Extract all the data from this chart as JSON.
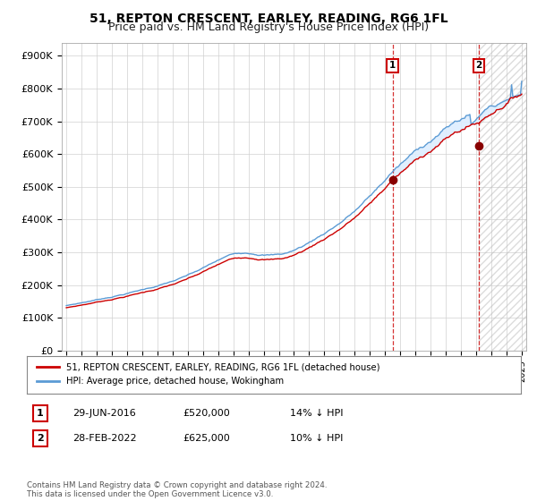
{
  "title": "51, REPTON CRESCENT, EARLEY, READING, RG6 1FL",
  "subtitle": "Price paid vs. HM Land Registry's House Price Index (HPI)",
  "ytick_vals": [
    0,
    100000,
    200000,
    300000,
    400000,
    500000,
    600000,
    700000,
    800000,
    900000
  ],
  "ytick_labels": [
    "£0",
    "£100K",
    "£200K",
    "£300K",
    "£400K",
    "£500K",
    "£600K",
    "£700K",
    "£800K",
    "£900K"
  ],
  "x_start_year": 1995,
  "x_end_year": 2025,
  "hpi_color": "#5b9bd5",
  "hpi_fill_color": "#ddeeff",
  "price_color": "#cc0000",
  "transaction1_date": 2016.49,
  "transaction1_price": 520000,
  "transaction1_label": "1",
  "transaction2_date": 2022.17,
  "transaction2_price": 625000,
  "transaction2_label": "2",
  "legend_line1": "51, REPTON CRESCENT, EARLEY, READING, RG6 1FL (detached house)",
  "legend_line2": "HPI: Average price, detached house, Wokingham",
  "annot1_date": "29-JUN-2016",
  "annot1_price": "£520,000",
  "annot1_pct": "14% ↓ HPI",
  "annot2_date": "28-FEB-2022",
  "annot2_price": "£625,000",
  "annot2_pct": "10% ↓ HPI",
  "footer": "Contains HM Land Registry data © Crown copyright and database right 2024.\nThis data is licensed under the Open Government Licence v3.0.",
  "title_fontsize": 10,
  "subtitle_fontsize": 9,
  "background_color": "#ffffff"
}
